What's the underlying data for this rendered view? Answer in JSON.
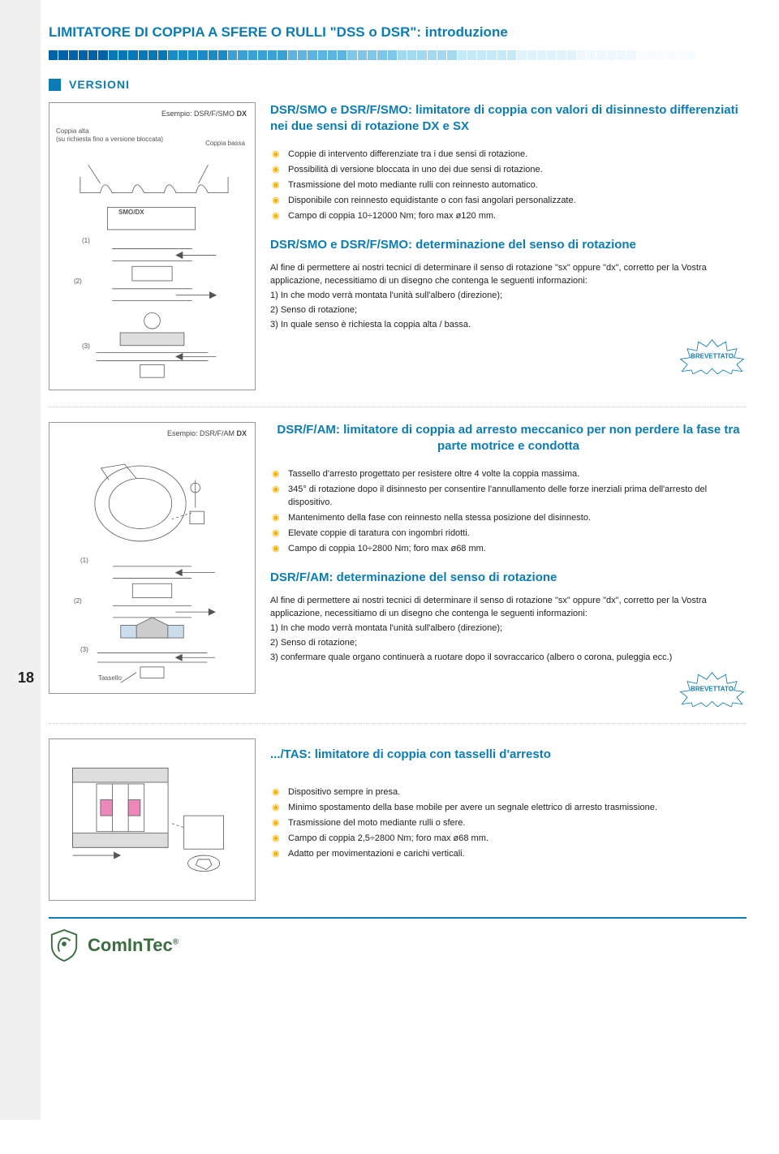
{
  "page_number": "18",
  "page_title": "LIMITATORE DI COPPIA A SFERE O RULLI \"DSS o DSR\": introduzione",
  "section_header": "VERSIONI",
  "checker_colors": [
    "#0062a8",
    "#0877b8",
    "#1a8bc7",
    "#3ba0d4",
    "#5cb4e0",
    "#7ec7ea",
    "#a1d9f1",
    "#c4e9f7",
    "#dff3fb",
    "#eff9fd",
    "#f8fcfe",
    "#ffffff"
  ],
  "block_a": {
    "example_prefix": "Esempio: DSR/F/SMO ",
    "example_bold": "DX",
    "label_coppia_alta_1": "Coppia alta",
    "label_coppia_alta_2": "(su richiesta fino a versione bloccata)",
    "label_coppia_bassa": "Coppia bassa",
    "label_smo_dx": "SMO/DX",
    "label_1": "(1)",
    "label_2": "(2)",
    "label_3": "(3)",
    "heading": "DSR/SMO e DSR/F/SMO: limitatore di coppia con valori di disinnesto differenziati nei due sensi di rotazione DX e SX",
    "bullets": [
      "Coppie di intervento differenziate tra i due sensi di rotazione.",
      "Possibilità di versione bloccata in uno dei due sensi di rotazione.",
      "Trasmissione del moto mediante rulli con reinnesto automatico.",
      "Disponibile con reinnesto equidistante o con fasi angolari personalizzate.",
      "Campo di coppia 10÷12000 Nm; foro max ø120 mm."
    ],
    "subheading2": "DSR/SMO e DSR/F/SMO: determinazione del senso di rotazione",
    "para_intro": "Al fine di permettere ai nostri tecnici di determinare il senso di rotazione \"sx\" oppure \"dx\", corretto per la Vostra applicazione, necessitiamo di un disegno che contenga le seguenti informazioni:",
    "para_item1": "1)   In che modo verrà montata l'unità sull'albero (direzione);",
    "para_item2": "2)   Senso di rotazione;",
    "para_item3": "3)   In quale senso è richiesta la coppia alta / bassa.",
    "brevettato": "BREVETTATO"
  },
  "block_b": {
    "example_prefix": "Esempio: DSR/F/AM ",
    "example_bold": "DX",
    "label_1": "(1)",
    "label_2": "(2)",
    "label_3": "(3)",
    "label_tassello": "Tassello",
    "heading": "DSR/F/AM: limitatore di coppia ad arresto meccanico per non perdere la fase tra parte motrice e condotta",
    "bullets": [
      "Tassello d'arresto progettato per resistere oltre 4 volte la coppia massima.",
      "345° di rotazione dopo il disinnesto per consentire l'annullamento delle forze inerziali prima dell'arresto del dispositivo.",
      "Mantenimento della fase con reinnesto nella stessa posizione del disinnesto.",
      "Elevate coppie di taratura con ingombri ridotti.",
      "Campo di coppia 10÷2800 Nm; foro max ø68 mm."
    ],
    "subheading2": "DSR/F/AM: determinazione del senso di rotazione",
    "para_intro": "Al fine di permettere ai nostri tecnici di determinare il senso di rotazione \"sx\" oppure \"dx\", corretto per la Vostra applicazione, necessitiamo di un disegno che contenga le seguenti informazioni:",
    "para_item1": "1)    In che modo verrà montata l'unità sull'albero (direzione);",
    "para_item2": "2)    Senso di rotazione;",
    "para_item3": "3)    confermare quale organo continuerà a ruotare dopo il sovraccarico (albero o corona, puleggia ecc.)",
    "brevettato": "BREVETTATO"
  },
  "block_c": {
    "heading": ".../TAS: limitatore di coppia con tasselli d'arresto",
    "bullets": [
      "Dispositivo sempre in presa.",
      "Minimo spostamento della base mobile per avere un segnale elettrico di arresto trasmissione.",
      "Trasmissione del moto mediante rulli o sfere.",
      "Campo di coppia 2,5÷2800 Nm; foro max ø68 mm.",
      "Adatto per movimentazioni e carichi verticali."
    ]
  },
  "footer": {
    "brand": "ComInTec",
    "registered": "®"
  }
}
